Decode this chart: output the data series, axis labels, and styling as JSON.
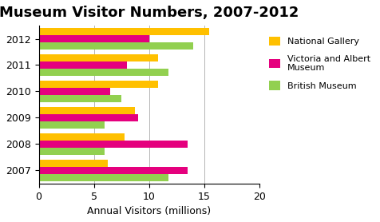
{
  "title": "Museum Visitor Numbers, 2007-2012",
  "xlabel": "Annual Visitors (millions)",
  "years": [
    "2012",
    "2011",
    "2010",
    "2009",
    "2008",
    "2007"
  ],
  "series": [
    {
      "name": "National Gallery",
      "values": [
        15.5,
        10.8,
        10.8,
        8.7,
        7.8,
        6.3
      ],
      "color": "#FFC000"
    },
    {
      "name": "Victoria and Albert Museum",
      "values": [
        10.0,
        8.0,
        6.5,
        9.0,
        13.5,
        13.5
      ],
      "color": "#E5007E"
    },
    {
      "name": "British Museum",
      "values": [
        14.0,
        11.8,
        7.5,
        6.0,
        6.0,
        11.8
      ],
      "color": "#92D050"
    }
  ],
  "xlim": [
    0,
    20
  ],
  "xticks": [
    0,
    5,
    10,
    15,
    20
  ],
  "bar_height": 0.27,
  "legend_labels": [
    "National Gallery",
    "Victoria and Albert\nMuseum",
    "British Museum"
  ],
  "legend_colors": [
    "#FFC000",
    "#E5007E",
    "#92D050"
  ],
  "background_color": "#FFFFFF",
  "title_fontsize": 13,
  "label_fontsize": 9,
  "tick_fontsize": 9
}
